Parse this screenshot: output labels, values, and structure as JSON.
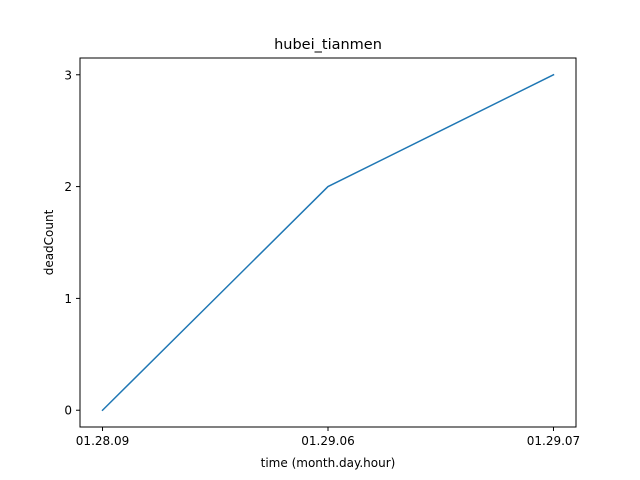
{
  "chart_data": {
    "type": "line",
    "title": "hubei_tianmen",
    "xlabel": "time (month.day.hour)",
    "ylabel": "deadCount",
    "categories": [
      "01.28.09",
      "01.29.06",
      "01.29.07"
    ],
    "series": [
      {
        "values": [
          0,
          2,
          3
        ],
        "color": "#1f77b4"
      }
    ],
    "yticks": [
      0,
      1,
      2,
      3
    ],
    "ylim": [
      -0.15,
      3.15
    ],
    "grid": false,
    "legend": "none"
  }
}
